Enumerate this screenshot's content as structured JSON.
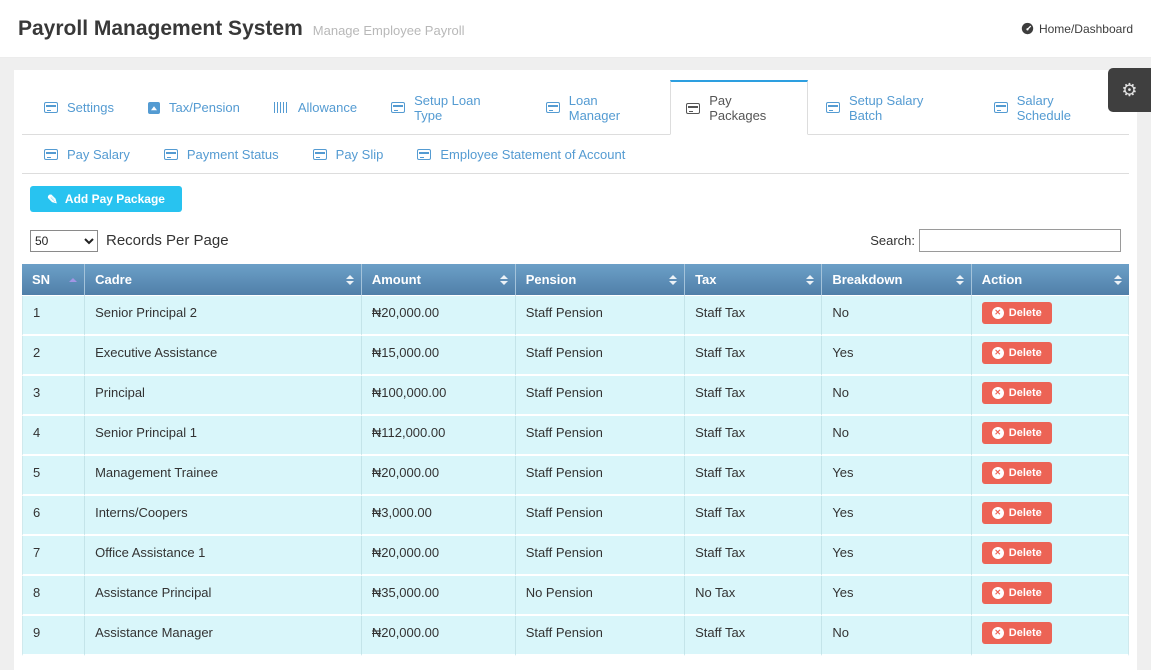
{
  "navbar": {
    "title": "Payroll Management System",
    "subtitle": "Manage Employee Payroll",
    "breadcrumb": "Home/Dashboard"
  },
  "tabs": {
    "row1": [
      {
        "label": "Settings",
        "icon": "credit-card-icon",
        "active": false
      },
      {
        "label": "Tax/Pension",
        "icon": "caret-square-up-icon",
        "active": false
      },
      {
        "label": "Allowance",
        "icon": "barcode-icon",
        "active": false
      },
      {
        "label": "Setup Loan Type",
        "icon": "credit-card-icon",
        "active": false
      },
      {
        "label": "Loan Manager",
        "icon": "credit-card-icon",
        "active": false
      },
      {
        "label": "Pay Packages",
        "icon": "credit-card-icon",
        "active": true
      },
      {
        "label": "Setup Salary Batch",
        "icon": "credit-card-icon",
        "active": false
      },
      {
        "label": "Salary Schedule",
        "icon": "credit-card-icon",
        "active": false
      }
    ],
    "row2": [
      {
        "label": "Pay Salary",
        "icon": "credit-card-icon",
        "active": false
      },
      {
        "label": "Payment Status",
        "icon": "credit-card-icon",
        "active": false
      },
      {
        "label": "Pay Slip",
        "icon": "credit-card-icon",
        "active": false
      },
      {
        "label": "Employee Statement of Account",
        "icon": "credit-card-icon",
        "active": false
      }
    ]
  },
  "toolbar": {
    "add_button_label": "Add Pay Package",
    "records_per_page_value": "50",
    "records_per_page_label": "Records Per Page",
    "search_label": "Search:",
    "search_value": ""
  },
  "table": {
    "columns": [
      {
        "label": "SN",
        "sort": "asc"
      },
      {
        "label": "Cadre",
        "sort": "both"
      },
      {
        "label": "Amount",
        "sort": "both"
      },
      {
        "label": "Pension",
        "sort": "both"
      },
      {
        "label": "Tax",
        "sort": "both"
      },
      {
        "label": "Breakdown",
        "sort": "both"
      },
      {
        "label": "Action",
        "sort": "both"
      }
    ],
    "delete_button_label": "Delete",
    "rows": [
      {
        "sn": "1",
        "cadre": "Senior Principal 2",
        "amount": "₦20,000.00",
        "pension": "Staff Pension",
        "tax": "Staff Tax",
        "breakdown": "No"
      },
      {
        "sn": "2",
        "cadre": "Executive Assistance",
        "amount": "₦15,000.00",
        "pension": "Staff Pension",
        "tax": "Staff Tax",
        "breakdown": "Yes"
      },
      {
        "sn": "3",
        "cadre": "Principal",
        "amount": "₦100,000.00",
        "pension": "Staff Pension",
        "tax": "Staff Tax",
        "breakdown": "No"
      },
      {
        "sn": "4",
        "cadre": "Senior Principal 1",
        "amount": "₦112,000.00",
        "pension": "Staff Pension",
        "tax": "Staff Tax",
        "breakdown": "No"
      },
      {
        "sn": "5",
        "cadre": "Management Trainee",
        "amount": "₦20,000.00",
        "pension": "Staff Pension",
        "tax": "Staff Tax",
        "breakdown": "Yes"
      },
      {
        "sn": "6",
        "cadre": "Interns/Coopers",
        "amount": "₦3,000.00",
        "pension": "Staff Pension",
        "tax": "Staff Tax",
        "breakdown": "Yes"
      },
      {
        "sn": "7",
        "cadre": "Office Assistance 1",
        "amount": "₦20,000.00",
        "pension": "Staff Pension",
        "tax": "Staff Tax",
        "breakdown": "Yes"
      },
      {
        "sn": "8",
        "cadre": "Assistance Principal",
        "amount": "₦35,000.00",
        "pension": "No Pension",
        "tax": "No Tax",
        "breakdown": "Yes"
      },
      {
        "sn": "9",
        "cadre": "Assistance Manager",
        "amount": "₦20,000.00",
        "pension": "Staff Pension",
        "tax": "Staff Tax",
        "breakdown": "No"
      }
    ]
  },
  "icons": {
    "pencil": "✎",
    "gear": "⚙",
    "circle_x": "✕"
  },
  "colors": {
    "accent_blue": "#549bd2",
    "active_tab_border": "#2d9fe0",
    "table_header_top": "#6ca0c8",
    "table_header_bottom": "#507fa9",
    "row_bg": "#d9f6fa",
    "add_button_bg": "#28c3f0",
    "delete_button_bg": "#ec6355"
  }
}
